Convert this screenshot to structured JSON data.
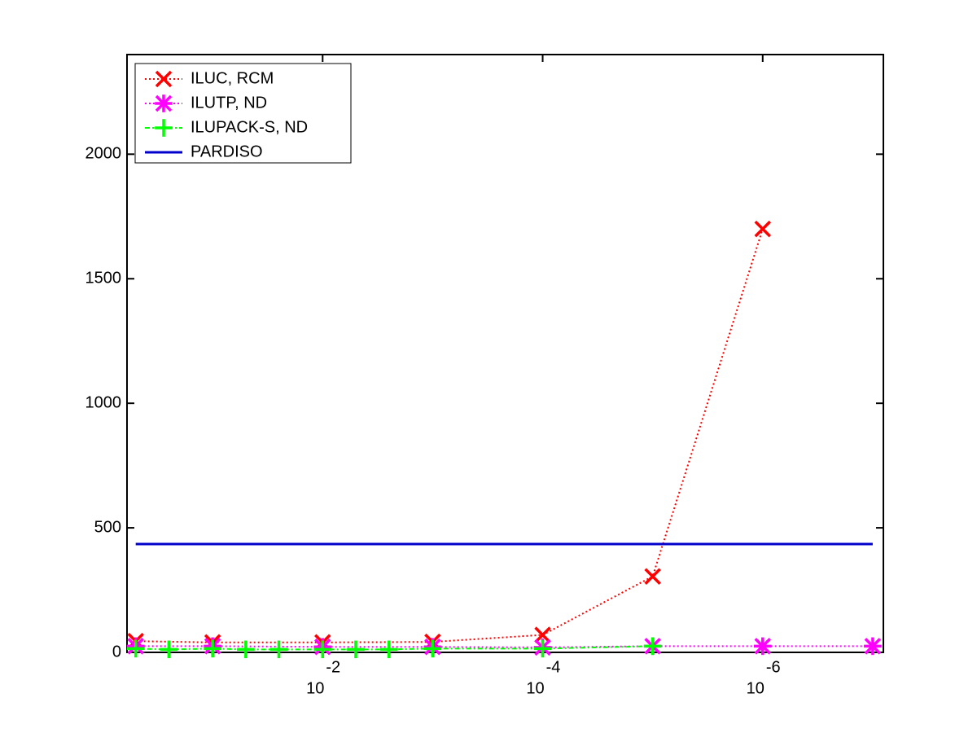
{
  "chart_data": {
    "type": "line",
    "xscale": "log",
    "xlim": [
      0.6,
      8e-08
    ],
    "ylim": [
      0,
      2400
    ],
    "yticks": [
      0,
      500,
      1000,
      1500,
      2000
    ],
    "xticks": [
      {
        "value": 0.01,
        "label": "10",
        "exponent": "-2"
      },
      {
        "value": 0.0001,
        "label": "10",
        "exponent": "-4"
      },
      {
        "value": 1e-06,
        "label": "10",
        "exponent": "-6"
      }
    ],
    "legend": "upper left",
    "series": [
      {
        "name": "ILUC, RCM",
        "color": "#ff0000",
        "linestyle": "dotted",
        "marker": "x",
        "x": [
          0.5,
          0.1,
          0.01,
          0.001,
          0.0001,
          1e-05,
          1e-06
        ],
        "values": [
          45,
          40,
          40,
          42,
          70,
          305,
          1700
        ]
      },
      {
        "name": "ILUTP,  ND",
        "color": "#ff00ff",
        "linestyle": "dotted",
        "marker": "asterisk",
        "x": [
          0.5,
          0.1,
          0.01,
          0.001,
          0.0001,
          1e-05,
          1e-06,
          1e-07
        ],
        "values": [
          25,
          25,
          22,
          22,
          20,
          25,
          25,
          25
        ]
      },
      {
        "name": "ILUPACK-S, ND",
        "color": "#00ff00",
        "linestyle": "dashdot",
        "marker": "plus",
        "x": [
          0.5,
          0.25,
          0.1,
          0.05,
          0.025,
          0.01,
          0.005,
          0.0025,
          0.001,
          0.0001,
          1e-05
        ],
        "values": [
          15,
          12,
          15,
          12,
          12,
          12,
          12,
          12,
          15,
          15,
          25
        ]
      },
      {
        "name": "PARDISO",
        "color": "#0000cc",
        "linestyle": "solid",
        "marker": "none",
        "x": [
          0.5,
          1e-07
        ],
        "values": [
          435,
          435
        ]
      }
    ]
  }
}
